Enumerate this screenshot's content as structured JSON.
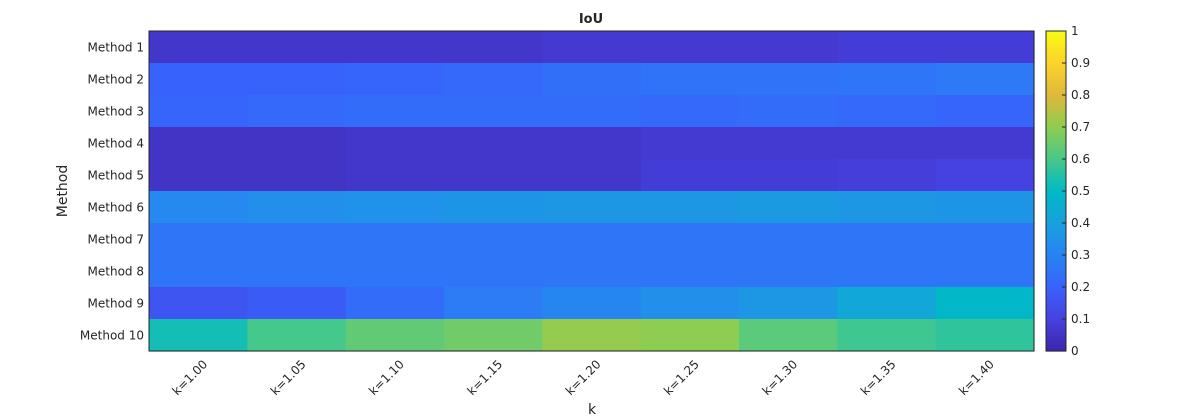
{
  "chart_data": {
    "type": "heatmap",
    "title": "IoU",
    "xlabel": "k",
    "ylabel": "Method",
    "categories": [
      "k=1.00",
      "k=1.05",
      "k=1.10",
      "k=1.15",
      "k=1.20",
      "k=1.25",
      "k=1.30",
      "k=1.35",
      "k=1.40"
    ],
    "rows": [
      "Method 1",
      "Method 2",
      "Method 3",
      "Method 4",
      "Method 5",
      "Method 6",
      "Method 7",
      "Method 8",
      "Method 9",
      "Method 10"
    ],
    "values": [
      [
        0.06,
        0.06,
        0.06,
        0.06,
        0.07,
        0.07,
        0.07,
        0.08,
        0.08
      ],
      [
        0.2,
        0.2,
        0.21,
        0.22,
        0.24,
        0.25,
        0.25,
        0.26,
        0.27
      ],
      [
        0.21,
        0.22,
        0.23,
        0.23,
        0.23,
        0.22,
        0.23,
        0.22,
        0.21
      ],
      [
        0.05,
        0.05,
        0.06,
        0.06,
        0.06,
        0.07,
        0.07,
        0.07,
        0.07
      ],
      [
        0.05,
        0.05,
        0.06,
        0.06,
        0.06,
        0.08,
        0.08,
        0.09,
        0.1
      ],
      [
        0.32,
        0.34,
        0.35,
        0.36,
        0.37,
        0.37,
        0.38,
        0.37,
        0.36
      ],
      [
        0.26,
        0.26,
        0.26,
        0.26,
        0.26,
        0.26,
        0.26,
        0.26,
        0.26
      ],
      [
        0.26,
        0.26,
        0.26,
        0.26,
        0.26,
        0.26,
        0.26,
        0.26,
        0.26
      ],
      [
        0.16,
        0.18,
        0.23,
        0.28,
        0.31,
        0.34,
        0.37,
        0.43,
        0.49
      ],
      [
        0.53,
        0.6,
        0.64,
        0.66,
        0.71,
        0.7,
        0.63,
        0.59,
        0.57
      ]
    ],
    "colorbar": {
      "colormap": "parula",
      "range": [
        0,
        1
      ],
      "ticks": [
        "0",
        "0.1",
        "0.2",
        "0.3",
        "0.4",
        "0.5",
        "0.6",
        "0.7",
        "0.8",
        "0.9",
        "1"
      ]
    }
  }
}
